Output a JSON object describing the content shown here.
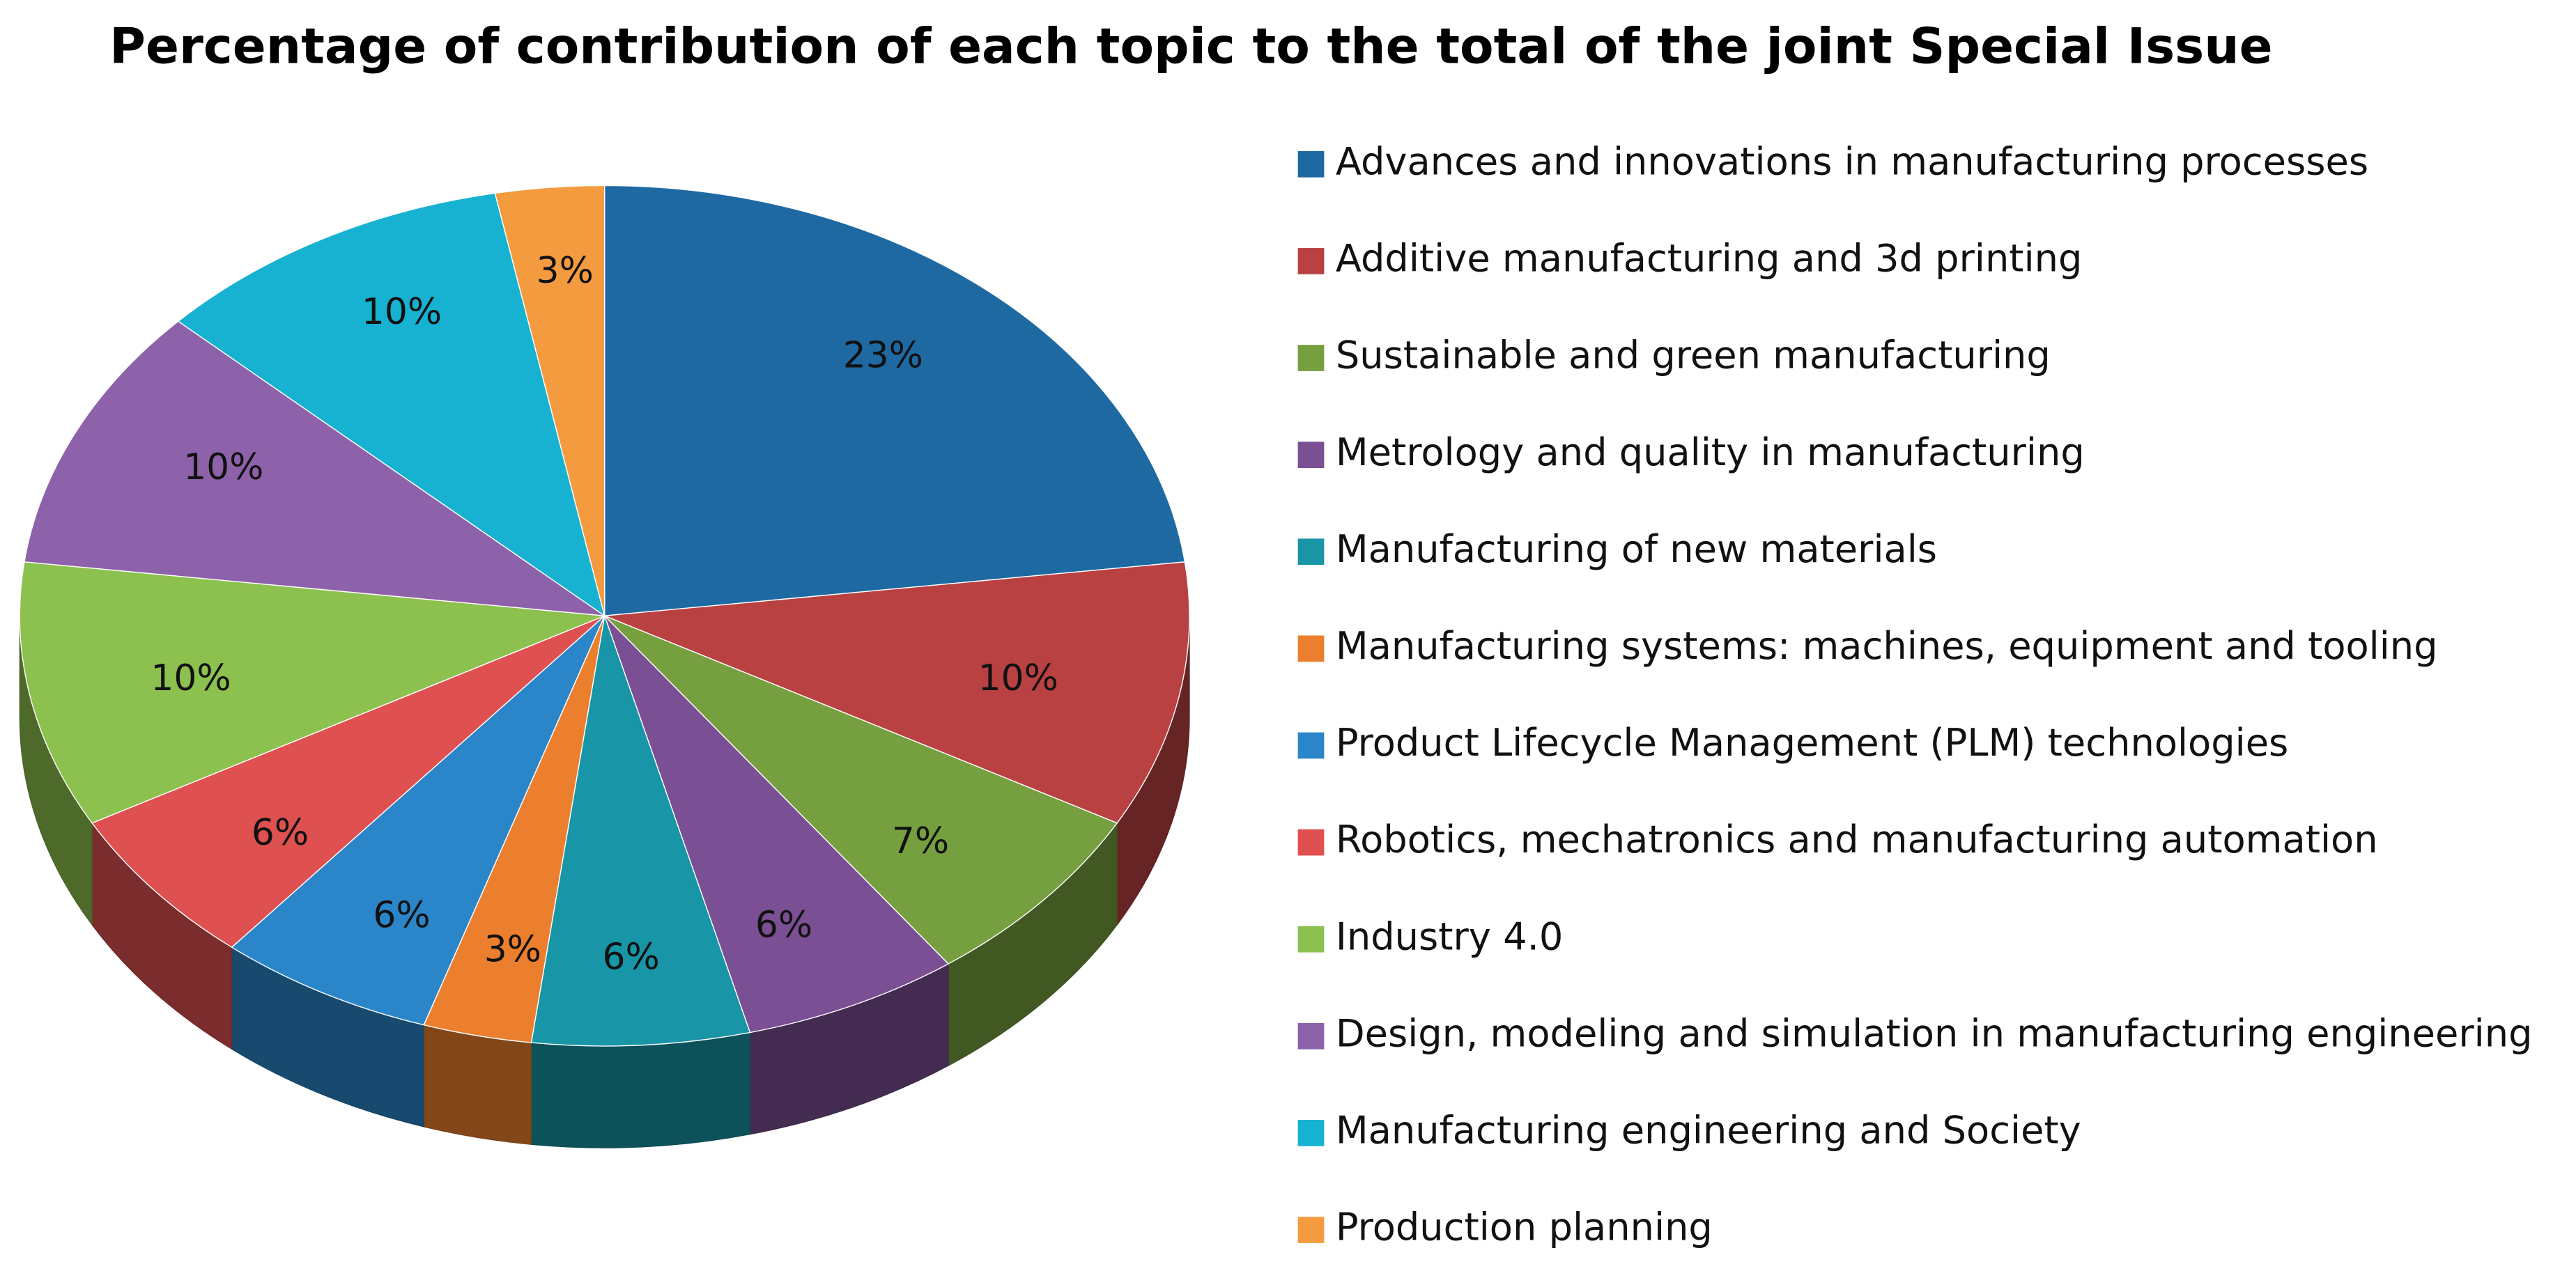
{
  "chart_data": {
    "type": "pie",
    "title": "Percentage of contribution of each topic to the total of the joint Special Issue",
    "categories": [
      "Advances and innovations in manufacturing processes",
      "Additive manufacturing and 3d printing",
      "Sustainable and green manufacturing",
      "Metrology and quality in manufacturing",
      "Manufacturing of new materials",
      "Manufacturing systems: machines, equipment and tooling",
      "Product Lifecycle Management (PLM) technologies",
      "Robotics, mechatronics and manufacturing automation",
      "Industry 4.0",
      "Design, modeling and simulation in manufacturing engineering",
      "Manufacturing engineering and Society",
      "Production planning"
    ],
    "values": [
      23,
      10,
      7,
      6,
      6,
      3,
      6,
      6,
      10,
      10,
      10,
      3
    ],
    "value_labels": [
      "23%",
      "10%",
      "7%",
      "6%",
      "6%",
      "3%",
      "6%",
      "6%",
      "10%",
      "10%",
      "10%",
      "3%"
    ],
    "colors": [
      "#1f69a3",
      "#b94141",
      "#76a03f",
      "#7a4f94",
      "#1895a6",
      "#ec7f2e",
      "#2b86c9",
      "#df5050",
      "#8cc04f",
      "#8d62aa",
      "#17b1d1",
      "#f59b3f"
    ],
    "legend": "right"
  }
}
